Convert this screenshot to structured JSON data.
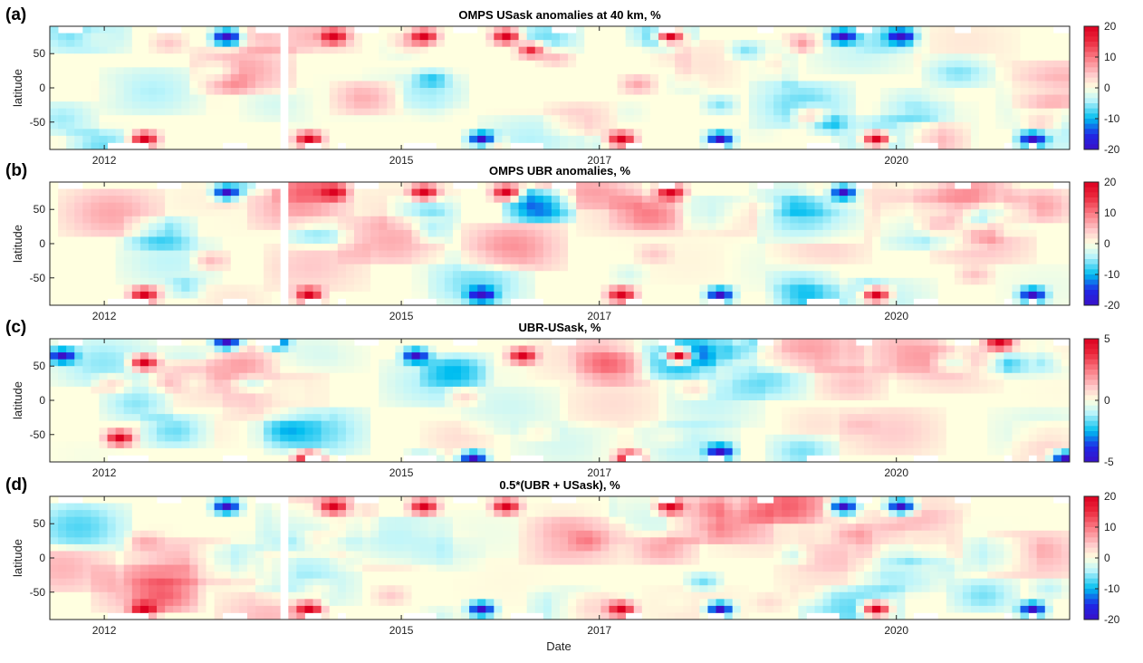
{
  "figure": {
    "xlabel": "Date",
    "ylabel": "latitude"
  },
  "chart_data": [
    {
      "type": "heatmap",
      "panel_label": "(a)",
      "title": "OMPS USask anomalies at 40 km,  %",
      "ylabel": "latitude",
      "x_ticks": [
        "2012",
        "2015",
        "2017",
        "2020"
      ],
      "x_tick_positions_year": [
        2012.0,
        2015.0,
        2017.0,
        2020.0
      ],
      "x_range_year": [
        2011.45,
        2021.75
      ],
      "y_ticks": [
        50,
        0,
        -50
      ],
      "ylim": [
        -90,
        90
      ],
      "colorbar": {
        "ticks": [
          20,
          10,
          0,
          -10,
          -20
        ],
        "range": [
          -20,
          20
        ]
      },
      "highlights": [
        {
          "date": "2012-05",
          "lat": -75,
          "value": 20
        },
        {
          "date": "2013-03",
          "lat": 80,
          "value": -20
        },
        {
          "date": "2014-01",
          "lat": -75,
          "value": 20
        },
        {
          "date": "2014-04",
          "lat": 75,
          "value": 20
        },
        {
          "date": "2015-03",
          "lat": 80,
          "value": 20
        },
        {
          "date": "2015-10",
          "lat": -75,
          "value": -20
        },
        {
          "date": "2016-01",
          "lat": 80,
          "value": 20
        },
        {
          "date": "2016-04",
          "lat": 60,
          "value": 15
        },
        {
          "date": "2017-03",
          "lat": -70,
          "value": 20
        },
        {
          "date": "2017-09",
          "lat": 80,
          "value": 20
        },
        {
          "date": "2018-03",
          "lat": -75,
          "value": -20
        },
        {
          "date": "2019-06",
          "lat": 80,
          "value": -20
        },
        {
          "date": "2019-10",
          "lat": -75,
          "value": 20
        },
        {
          "date": "2020-01",
          "lat": 80,
          "value": -20
        },
        {
          "date": "2021-05",
          "lat": -75,
          "value": -20
        }
      ]
    },
    {
      "type": "heatmap",
      "panel_label": "(b)",
      "title": "OMPS UBR anomalies, %",
      "ylabel": "latitude",
      "x_ticks": [
        "2012",
        "2015",
        "2017",
        "2020"
      ],
      "x_tick_positions_year": [
        2012.0,
        2015.0,
        2017.0,
        2020.0
      ],
      "x_range_year": [
        2011.45,
        2021.75
      ],
      "y_ticks": [
        50,
        0,
        -50
      ],
      "ylim": [
        -90,
        90
      ],
      "colorbar": {
        "ticks": [
          20,
          10,
          0,
          -10,
          -20
        ],
        "range": [
          -20,
          20
        ]
      },
      "highlights": [
        {
          "date": "2012-05",
          "lat": -75,
          "value": 20
        },
        {
          "date": "2013-03",
          "lat": 80,
          "value": -20
        },
        {
          "date": "2014-01",
          "lat": -75,
          "value": 20
        },
        {
          "date": "2014-04",
          "lat": 75,
          "value": 20
        },
        {
          "date": "2015-03",
          "lat": 80,
          "value": 20
        },
        {
          "date": "2015-10",
          "lat": -70,
          "value": -20
        },
        {
          "date": "2016-01",
          "lat": 80,
          "value": 20
        },
        {
          "date": "2017-03",
          "lat": -70,
          "value": 20
        },
        {
          "date": "2017-09",
          "lat": 80,
          "value": 20
        },
        {
          "date": "2018-03",
          "lat": -75,
          "value": -20
        },
        {
          "date": "2019-06",
          "lat": 80,
          "value": -20
        },
        {
          "date": "2019-10",
          "lat": -75,
          "value": 20
        },
        {
          "date": "2021-05",
          "lat": -75,
          "value": -20
        }
      ]
    },
    {
      "type": "heatmap",
      "panel_label": "(c)",
      "title": "UBR-USask, %",
      "ylabel": "latitude",
      "x_ticks": [
        "2012",
        "2015",
        "2017",
        "2020"
      ],
      "x_tick_positions_year": [
        2012.0,
        2015.0,
        2017.0,
        2020.0
      ],
      "x_range_year": [
        2011.45,
        2021.75
      ],
      "y_ticks": [
        50,
        0,
        -50
      ],
      "ylim": [
        -90,
        90
      ],
      "colorbar": {
        "ticks": [
          5,
          0,
          -5
        ],
        "range": [
          -5,
          5
        ]
      },
      "highlights": [
        {
          "date": "2011-07",
          "lat": 70,
          "value": -5
        },
        {
          "date": "2012-02",
          "lat": -55,
          "value": 5
        },
        {
          "date": "2012-05",
          "lat": 60,
          "value": 5
        },
        {
          "date": "2013-03",
          "lat": 85,
          "value": -5
        },
        {
          "date": "2013-09",
          "lat": 85,
          "value": -4
        },
        {
          "date": "2014-01",
          "lat": -85,
          "value": 5
        },
        {
          "date": "2015-02",
          "lat": 70,
          "value": -5
        },
        {
          "date": "2015-09",
          "lat": -80,
          "value": -5
        },
        {
          "date": "2016-03",
          "lat": 70,
          "value": 5
        },
        {
          "date": "2017-04",
          "lat": -85,
          "value": 5
        },
        {
          "date": "2017-10",
          "lat": 70,
          "value": 5
        },
        {
          "date": "2018-03",
          "lat": -70,
          "value": -5
        },
        {
          "date": "2021-01",
          "lat": 85,
          "value": 5
        },
        {
          "date": "2021-09",
          "lat": -85,
          "value": -5
        }
      ]
    },
    {
      "type": "heatmap",
      "panel_label": "(d)",
      "title": "0.5*(UBR + USask), %",
      "ylabel": "latitude",
      "x_ticks": [
        "2012",
        "2015",
        "2017",
        "2020"
      ],
      "x_tick_positions_year": [
        2012.0,
        2015.0,
        2017.0,
        2020.0
      ],
      "x_range_year": [
        2011.45,
        2021.75
      ],
      "y_ticks": [
        50,
        0,
        -50
      ],
      "ylim": [
        -90,
        90
      ],
      "colorbar": {
        "ticks": [
          20,
          10,
          0,
          -10,
          -20
        ],
        "range": [
          -20,
          20
        ]
      },
      "highlights": [
        {
          "date": "2012-05",
          "lat": -75,
          "value": 20
        },
        {
          "date": "2013-03",
          "lat": 80,
          "value": -20
        },
        {
          "date": "2014-01",
          "lat": -75,
          "value": 20
        },
        {
          "date": "2014-04",
          "lat": 75,
          "value": 20
        },
        {
          "date": "2015-03",
          "lat": 80,
          "value": 20
        },
        {
          "date": "2015-10",
          "lat": -75,
          "value": -20
        },
        {
          "date": "2016-01",
          "lat": 80,
          "value": 20
        },
        {
          "date": "2017-03",
          "lat": -70,
          "value": 20
        },
        {
          "date": "2017-09",
          "lat": 80,
          "value": 20
        },
        {
          "date": "2018-03",
          "lat": -75,
          "value": -20
        },
        {
          "date": "2019-06",
          "lat": 80,
          "value": -20
        },
        {
          "date": "2019-10",
          "lat": -75,
          "value": 20
        },
        {
          "date": "2020-01",
          "lat": 80,
          "value": -20
        },
        {
          "date": "2021-05",
          "lat": -75,
          "value": -20
        }
      ]
    }
  ],
  "colors": {
    "zero": "#FFFFE0",
    "positive_max": "#DC0020",
    "negative_max": "#3A10C8",
    "no_data": "#FFFFFF"
  }
}
